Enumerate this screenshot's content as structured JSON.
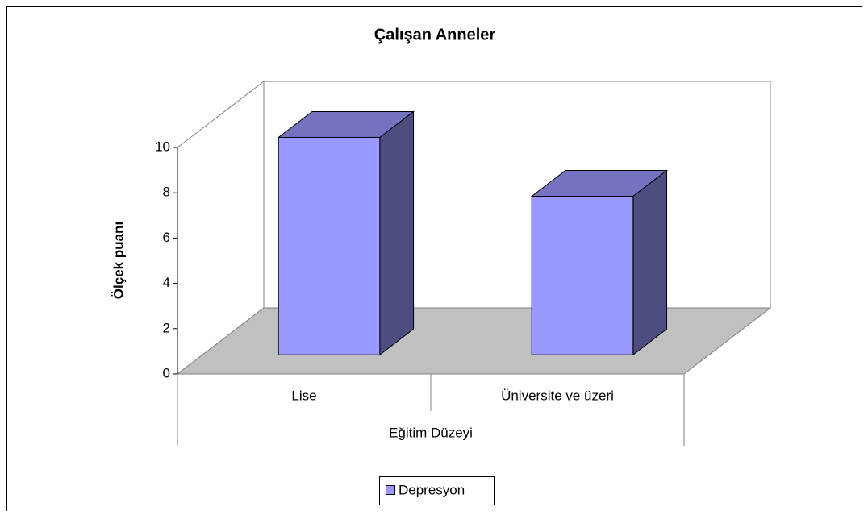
{
  "chart_data": {
    "type": "bar",
    "title": "Çalışan Anneler",
    "xlabel": "Eğitim Düzeyi",
    "ylabel": "Ölçek puanı",
    "categories": [
      "Lise",
      "Üniversite ve üzeri"
    ],
    "series": [
      {
        "name": "Depresyon",
        "color": "#9999ff",
        "values": [
          9.6,
          7.0
        ]
      }
    ],
    "ylim": [
      0,
      10
    ],
    "yticks": [
      0,
      2,
      4,
      6,
      8,
      10
    ],
    "legend": "bottom",
    "grid": false
  }
}
